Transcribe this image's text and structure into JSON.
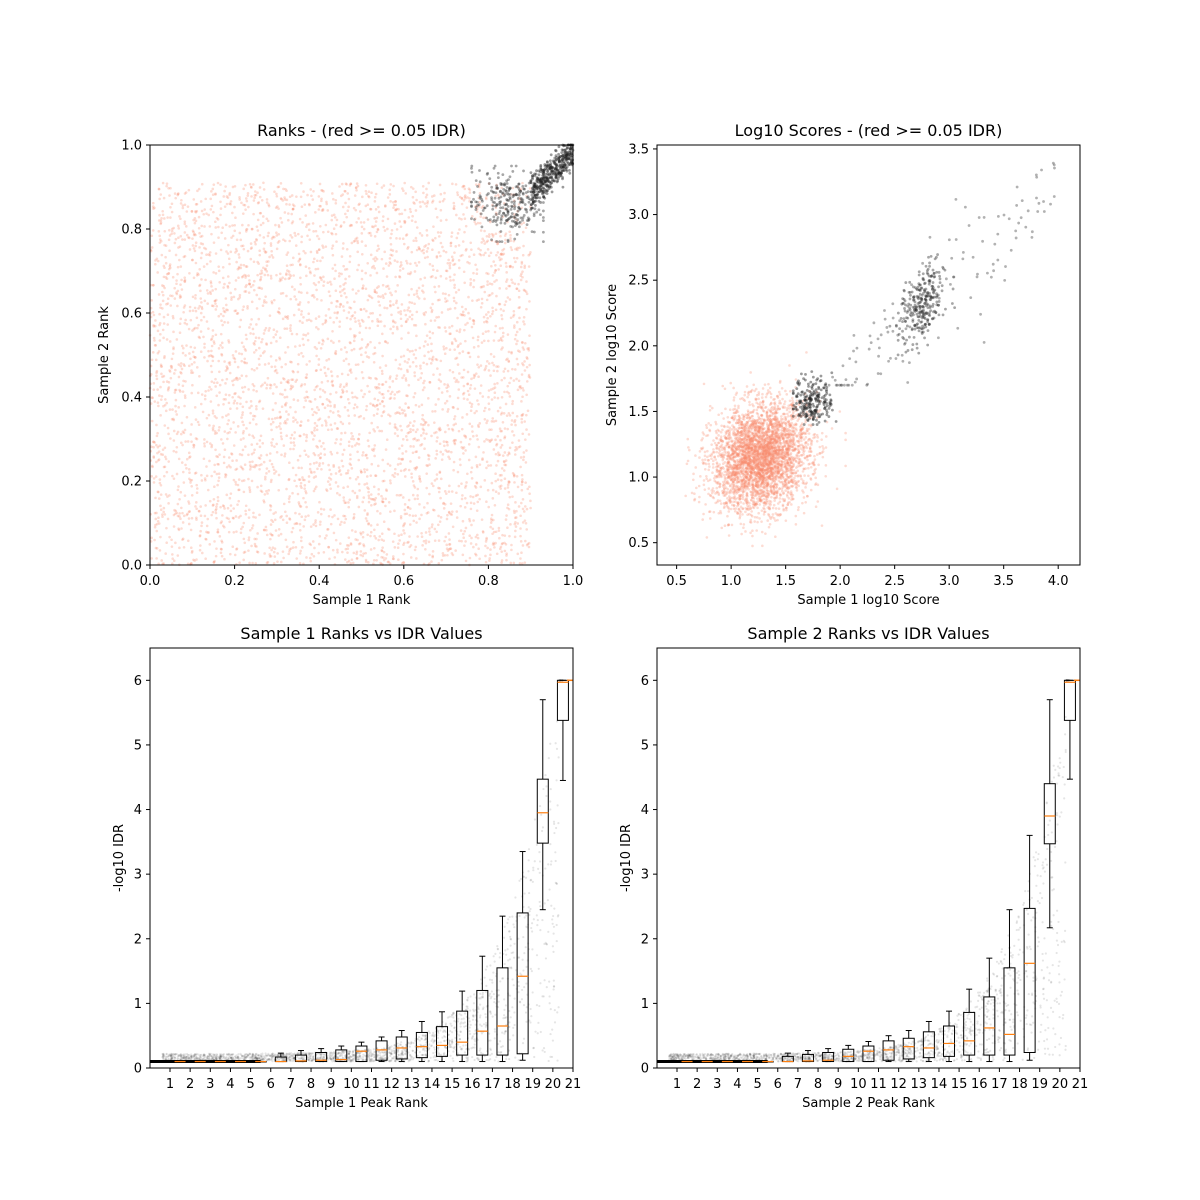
{
  "chart_data": [
    {
      "type": "scatter",
      "title": "Ranks - (red >= 0.05 IDR)",
      "xlabel": "Sample 1 Rank",
      "ylabel": "Sample 2 Rank",
      "xlim": [
        0,
        1
      ],
      "ylim": [
        0,
        1
      ],
      "xticks": [
        "0.0",
        "0.2",
        "0.4",
        "0.6",
        "0.8",
        "1.0"
      ],
      "yticks": [
        "0.0",
        "0.2",
        "0.4",
        "0.6",
        "0.8",
        "1.0"
      ],
      "grid": false,
      "colors": {
        "pass": "#222222",
        "fail": "#fa8a6e"
      },
      "series": [
        {
          "label_key": "fail",
          "n": 4200,
          "x_range": [
            0.0,
            0.9
          ],
          "y_range": [
            0.0,
            0.91
          ]
        },
        {
          "label_key": "pass_tail",
          "n": 260,
          "x_center": 0.84,
          "y_center": 0.86,
          "spread": [
            0.04,
            0.04
          ]
        },
        {
          "label_key": "pass_diag",
          "n": 420,
          "x_range": [
            0.9,
            1.0
          ],
          "y_offset_sd": 0.02
        }
      ]
    },
    {
      "type": "scatter",
      "title": "Log10 Scores - (red >= 0.05 IDR)",
      "xlabel": "Sample 1 log10 Score",
      "ylabel": "Sample 2 log10 Score",
      "xlim": [
        0.32,
        4.2
      ],
      "ylim": [
        0.33,
        3.53
      ],
      "xticks": [
        "0.5",
        "1.0",
        "1.5",
        "2.0",
        "2.5",
        "3.0",
        "3.5",
        "4.0"
      ],
      "yticks": [
        "0.5",
        "1.0",
        "1.5",
        "2.0",
        "2.5",
        "3.0",
        "3.5"
      ],
      "grid": false,
      "colors": {
        "pass": "#222222",
        "fail": "#fa8a6e"
      },
      "series": [
        {
          "label_key": "fail",
          "n": 3600,
          "x_center": 1.27,
          "y_center": 1.15,
          "spread": [
            0.22,
            0.2
          ]
        },
        {
          "label_key": "pass_low",
          "n": 220,
          "x_center": 1.75,
          "y_center": 1.58,
          "spread": [
            0.09,
            0.09
          ]
        },
        {
          "label_key": "pass_high",
          "n": 280,
          "x_center": 2.75,
          "y_center": 2.3,
          "spread": [
            0.1,
            0.14
          ]
        },
        {
          "label_key": "pass_sparse",
          "n": 130,
          "x_range": [
            1.8,
            4.0
          ],
          "y_range": [
            1.7,
            3.4
          ]
        }
      ]
    },
    {
      "type": "box",
      "title": "Sample 1 Ranks vs IDR Values",
      "xlabel": "Sample 1 Peak Rank",
      "ylabel": "-log10 IDR",
      "xlim": [
        0,
        21
      ],
      "ylim": [
        0,
        6.5
      ],
      "xticks": [
        "1",
        "2",
        "3",
        "4",
        "5",
        "6",
        "7",
        "8",
        "9",
        "10",
        "11",
        "12",
        "13",
        "14",
        "15",
        "16",
        "17",
        "18",
        "19",
        "20",
        "21"
      ],
      "yticks": [
        "0",
        "1",
        "2",
        "3",
        "4",
        "5",
        "6"
      ],
      "grid": false,
      "colors": {
        "box": "#000000",
        "median": "#ff7f0e",
        "points": "#000000"
      },
      "boxes": [
        {
          "pos": 1,
          "q1": 0.1,
          "med": 0.1,
          "q3": 0.1,
          "wlo": 0.1,
          "whi": 0.1
        },
        {
          "pos": 2,
          "q1": 0.1,
          "med": 0.1,
          "q3": 0.1,
          "wlo": 0.1,
          "whi": 0.1
        },
        {
          "pos": 3,
          "q1": 0.1,
          "med": 0.1,
          "q3": 0.1,
          "wlo": 0.1,
          "whi": 0.1
        },
        {
          "pos": 4,
          "q1": 0.1,
          "med": 0.1,
          "q3": 0.1,
          "wlo": 0.1,
          "whi": 0.1
        },
        {
          "pos": 5,
          "q1": 0.1,
          "med": 0.1,
          "q3": 0.1,
          "wlo": 0.1,
          "whi": 0.1
        },
        {
          "pos": 6,
          "q1": 0.1,
          "med": 0.1,
          "q3": 0.17,
          "wlo": 0.1,
          "whi": 0.23
        },
        {
          "pos": 7,
          "q1": 0.1,
          "med": 0.11,
          "q3": 0.2,
          "wlo": 0.1,
          "whi": 0.27
        },
        {
          "pos": 8,
          "q1": 0.1,
          "med": 0.12,
          "q3": 0.24,
          "wlo": 0.1,
          "whi": 0.3
        },
        {
          "pos": 9,
          "q1": 0.1,
          "med": 0.13,
          "q3": 0.28,
          "wlo": 0.1,
          "whi": 0.34
        },
        {
          "pos": 10,
          "q1": 0.1,
          "med": 0.26,
          "q3": 0.34,
          "wlo": 0.1,
          "whi": 0.4
        },
        {
          "pos": 11,
          "q1": 0.12,
          "med": 0.28,
          "q3": 0.42,
          "wlo": 0.1,
          "whi": 0.48
        },
        {
          "pos": 12,
          "q1": 0.14,
          "med": 0.31,
          "q3": 0.48,
          "wlo": 0.1,
          "whi": 0.58
        },
        {
          "pos": 13,
          "q1": 0.16,
          "med": 0.33,
          "q3": 0.55,
          "wlo": 0.1,
          "whi": 0.72
        },
        {
          "pos": 14,
          "q1": 0.18,
          "med": 0.35,
          "q3": 0.64,
          "wlo": 0.1,
          "whi": 0.87
        },
        {
          "pos": 15,
          "q1": 0.2,
          "med": 0.4,
          "q3": 0.88,
          "wlo": 0.1,
          "whi": 1.19
        },
        {
          "pos": 16,
          "q1": 0.2,
          "med": 0.57,
          "q3": 1.2,
          "wlo": 0.1,
          "whi": 1.73
        },
        {
          "pos": 17,
          "q1": 0.2,
          "med": 0.65,
          "q3": 1.55,
          "wlo": 0.1,
          "whi": 2.35
        },
        {
          "pos": 18,
          "q1": 0.22,
          "med": 1.42,
          "q3": 2.4,
          "wlo": 0.12,
          "whi": 3.35
        },
        {
          "pos": 19,
          "q1": 3.48,
          "med": 3.95,
          "q3": 4.47,
          "wlo": 2.45,
          "whi": 5.7
        },
        {
          "pos": 20,
          "q1": 5.38,
          "med": 5.97,
          "q3": 6.0,
          "wlo": 4.45,
          "whi": 6.0
        },
        {
          "pos": 21,
          "q1": 6.0,
          "med": 6.0,
          "q3": 6.0,
          "wlo": 6.0,
          "whi": 6.0
        }
      ]
    },
    {
      "type": "box",
      "title": "Sample 2 Ranks vs IDR Values",
      "xlabel": "Sample 2 Peak Rank",
      "ylabel": "-log10 IDR",
      "xlim": [
        0,
        21
      ],
      "ylim": [
        0,
        6.5
      ],
      "xticks": [
        "1",
        "2",
        "3",
        "4",
        "5",
        "6",
        "7",
        "8",
        "9",
        "10",
        "11",
        "12",
        "13",
        "14",
        "15",
        "16",
        "17",
        "18",
        "19",
        "20",
        "21"
      ],
      "yticks": [
        "0",
        "1",
        "2",
        "3",
        "4",
        "5",
        "6"
      ],
      "grid": false,
      "colors": {
        "box": "#000000",
        "median": "#ff7f0e",
        "points": "#000000"
      },
      "boxes": [
        {
          "pos": 1,
          "q1": 0.1,
          "med": 0.1,
          "q3": 0.1,
          "wlo": 0.1,
          "whi": 0.1
        },
        {
          "pos": 2,
          "q1": 0.1,
          "med": 0.1,
          "q3": 0.1,
          "wlo": 0.1,
          "whi": 0.1
        },
        {
          "pos": 3,
          "q1": 0.1,
          "med": 0.1,
          "q3": 0.1,
          "wlo": 0.1,
          "whi": 0.1
        },
        {
          "pos": 4,
          "q1": 0.1,
          "med": 0.1,
          "q3": 0.1,
          "wlo": 0.1,
          "whi": 0.1
        },
        {
          "pos": 5,
          "q1": 0.1,
          "med": 0.1,
          "q3": 0.1,
          "wlo": 0.1,
          "whi": 0.1
        },
        {
          "pos": 6,
          "q1": 0.1,
          "med": 0.1,
          "q3": 0.18,
          "wlo": 0.1,
          "whi": 0.23
        },
        {
          "pos": 7,
          "q1": 0.1,
          "med": 0.11,
          "q3": 0.21,
          "wlo": 0.1,
          "whi": 0.27
        },
        {
          "pos": 8,
          "q1": 0.1,
          "med": 0.12,
          "q3": 0.24,
          "wlo": 0.1,
          "whi": 0.3
        },
        {
          "pos": 9,
          "q1": 0.1,
          "med": 0.18,
          "q3": 0.29,
          "wlo": 0.1,
          "whi": 0.35
        },
        {
          "pos": 10,
          "q1": 0.1,
          "med": 0.26,
          "q3": 0.34,
          "wlo": 0.1,
          "whi": 0.41
        },
        {
          "pos": 11,
          "q1": 0.12,
          "med": 0.28,
          "q3": 0.42,
          "wlo": 0.1,
          "whi": 0.5
        },
        {
          "pos": 12,
          "q1": 0.14,
          "med": 0.33,
          "q3": 0.46,
          "wlo": 0.1,
          "whi": 0.58
        },
        {
          "pos": 13,
          "q1": 0.16,
          "med": 0.31,
          "q3": 0.56,
          "wlo": 0.1,
          "whi": 0.72
        },
        {
          "pos": 14,
          "q1": 0.18,
          "med": 0.38,
          "q3": 0.65,
          "wlo": 0.1,
          "whi": 0.88
        },
        {
          "pos": 15,
          "q1": 0.2,
          "med": 0.42,
          "q3": 0.86,
          "wlo": 0.1,
          "whi": 1.22
        },
        {
          "pos": 16,
          "q1": 0.2,
          "med": 0.62,
          "q3": 1.1,
          "wlo": 0.1,
          "whi": 1.7
        },
        {
          "pos": 17,
          "q1": 0.2,
          "med": 0.52,
          "q3": 1.55,
          "wlo": 0.1,
          "whi": 2.45
        },
        {
          "pos": 18,
          "q1": 0.24,
          "med": 1.62,
          "q3": 2.47,
          "wlo": 0.12,
          "whi": 3.6
        },
        {
          "pos": 19,
          "q1": 3.47,
          "med": 3.9,
          "q3": 4.4,
          "wlo": 2.17,
          "whi": 5.7
        },
        {
          "pos": 20,
          "q1": 5.38,
          "med": 5.97,
          "q3": 6.0,
          "wlo": 4.47,
          "whi": 6.0
        },
        {
          "pos": 21,
          "q1": 6.0,
          "med": 6.0,
          "q3": 6.0,
          "wlo": 6.0,
          "whi": 6.0
        }
      ]
    }
  ]
}
